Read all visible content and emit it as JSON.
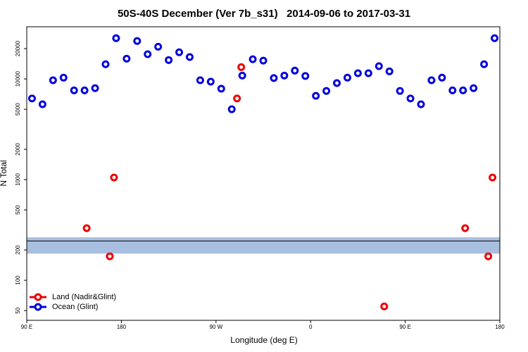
{
  "chart_data": {
    "type": "scatter",
    "title": "50S-40S December (Ver 7b_s31)   2014-09-06 to 2017-03-31",
    "x_label": "Longitude (deg E)",
    "y_label": "N Total",
    "log_y": true,
    "xlim": [
      90,
      540
    ],
    "xticks": [
      {
        "value": 90,
        "label": "90 E"
      },
      {
        "value": 180,
        "label": "180"
      },
      {
        "value": 270,
        "label": "90 W"
      },
      {
        "value": 360,
        "label": "0"
      },
      {
        "value": 450,
        "label": "90 E"
      },
      {
        "value": 540,
        "label": "180"
      }
    ],
    "ylim": [
      40,
      33000
    ],
    "yticks": [
      50,
      100,
      200,
      500,
      1000,
      2000,
      5000,
      10000,
      20000
    ],
    "band": {
      "range": [
        184,
        267
      ],
      "color": "#a9bfdf"
    },
    "hline": 246,
    "legend": "bottom-left",
    "series": [
      {
        "name": "Land (Nadir&Glint)",
        "color": "#ee0000",
        "x": [
          147,
          169,
          173,
          290,
          294,
          430,
          507,
          529,
          533
        ],
        "values": [
          329,
          173,
          1050,
          6400,
          13100,
          55,
          329,
          173,
          1050
        ]
      },
      {
        "name": "Ocean (Glint)",
        "color": "#0000dd",
        "x": [
          95,
          105,
          115,
          125,
          135,
          145,
          155,
          165,
          175,
          185,
          195,
          205,
          215,
          225,
          235,
          245,
          255,
          265,
          275,
          285,
          295,
          305,
          315,
          325,
          335,
          345,
          355,
          365,
          375,
          385,
          395,
          405,
          415,
          425,
          435,
          445,
          455,
          465,
          475,
          485,
          495,
          505,
          515,
          525,
          535
        ],
        "values": [
          6400,
          5600,
          9700,
          10300,
          7700,
          7700,
          8100,
          14000,
          25400,
          15900,
          23800,
          17600,
          20900,
          15400,
          18400,
          16500,
          9700,
          9400,
          8000,
          5000,
          10800,
          15700,
          15200,
          10200,
          10800,
          12100,
          10700,
          6800,
          7600,
          9100,
          10300,
          11400,
          11400,
          13400,
          11900,
          7600,
          6400,
          5600,
          9700,
          10300,
          7700,
          7700,
          8100,
          14000,
          25400
        ]
      }
    ]
  }
}
